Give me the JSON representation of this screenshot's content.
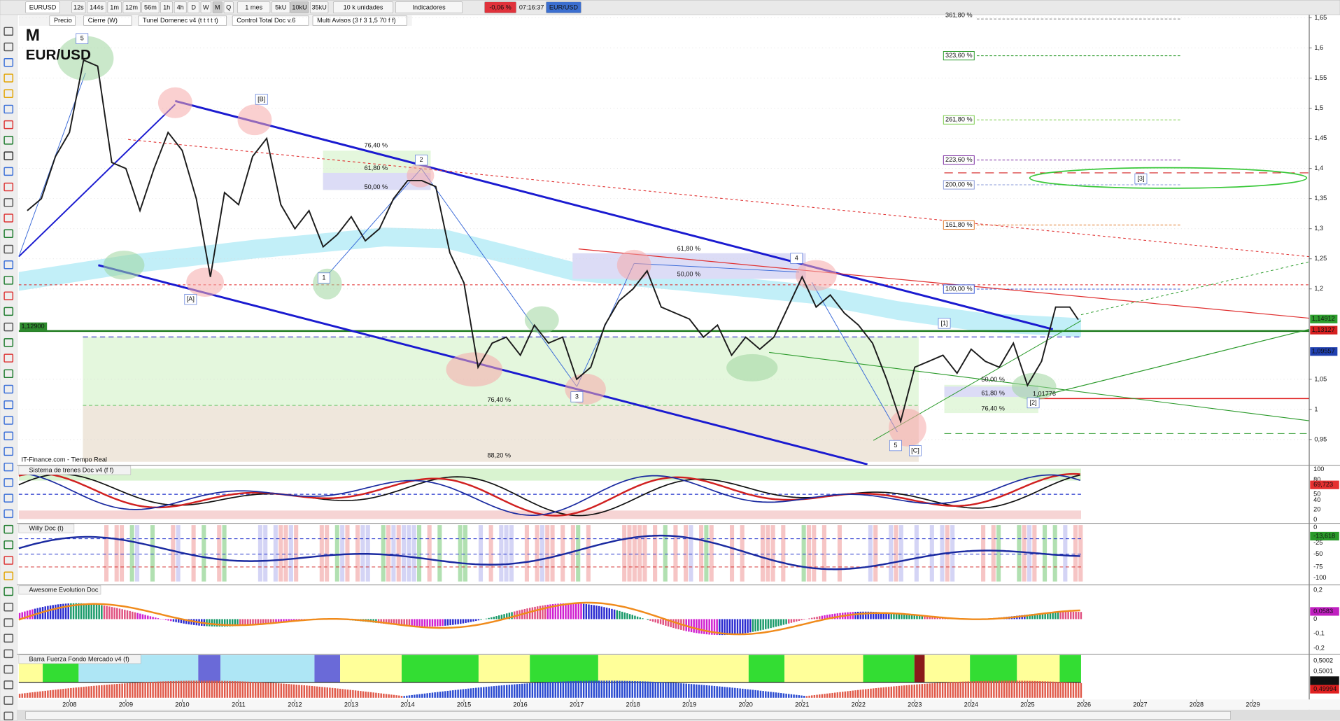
{
  "toolbar": {
    "symbol": "EURUSD",
    "intervals": [
      "12s",
      "144s",
      "1m",
      "12m",
      "56m",
      "1h",
      "4h",
      "D",
      "W",
      "M",
      "Q"
    ],
    "period": "1 mes",
    "units": [
      "5kU",
      "10kU",
      "35kU"
    ],
    "quantity": "10 k unidades",
    "indicators": "Indicadores",
    "change": "-0,06 %",
    "time": "07:16:37",
    "pair": "EUR/USD"
  },
  "indicator_bar": [
    "Precio",
    "Cierre (W)",
    "Tunel Domenec v4 (t t t t t)",
    "Control Total Doc v.6",
    "Multi Avisos (3 f 3 1,5 70 f f)"
  ],
  "chart_data": {
    "type": "line",
    "title": "M",
    "subtitle": "EUR/USD",
    "source": "IT-Finance.com - Tiempo Real",
    "x": [
      2007.25,
      2007.5,
      2007.75,
      2008,
      2008.25,
      2008.5,
      2008.75,
      2009,
      2009.25,
      2009.5,
      2009.75,
      2010,
      2010.25,
      2010.5,
      2010.75,
      2011,
      2011.25,
      2011.5,
      2011.75,
      2012,
      2012.25,
      2012.5,
      2012.75,
      2013,
      2013.25,
      2013.5,
      2013.75,
      2014,
      2014.25,
      2014.5,
      2014.75,
      2015,
      2015.25,
      2015.5,
      2015.75,
      2016,
      2016.25,
      2016.5,
      2016.75,
      2017,
      2017.25,
      2017.5,
      2017.75,
      2018,
      2018.25,
      2018.5,
      2018.75,
      2019,
      2019.25,
      2019.5,
      2019.75,
      2020,
      2020.25,
      2020.5,
      2020.75,
      2021,
      2021.25,
      2021.5,
      2021.75,
      2022,
      2022.25,
      2022.5,
      2022.75,
      2023,
      2023.25,
      2023.5,
      2023.75,
      2024,
      2024.25,
      2024.5,
      2024.75,
      2025,
      2025.25,
      2025.5,
      2025.75,
      2025.9
    ],
    "values": [
      1.33,
      1.35,
      1.42,
      1.46,
      1.58,
      1.57,
      1.41,
      1.4,
      1.33,
      1.4,
      1.46,
      1.43,
      1.35,
      1.22,
      1.36,
      1.34,
      1.42,
      1.45,
      1.34,
      1.3,
      1.33,
      1.27,
      1.29,
      1.32,
      1.28,
      1.3,
      1.35,
      1.38,
      1.38,
      1.37,
      1.26,
      1.21,
      1.07,
      1.11,
      1.12,
      1.09,
      1.14,
      1.11,
      1.12,
      1.05,
      1.07,
      1.14,
      1.18,
      1.2,
      1.23,
      1.17,
      1.16,
      1.15,
      1.12,
      1.14,
      1.09,
      1.12,
      1.1,
      1.12,
      1.17,
      1.22,
      1.17,
      1.19,
      1.16,
      1.14,
      1.11,
      1.05,
      0.98,
      1.07,
      1.08,
      1.09,
      1.06,
      1.1,
      1.08,
      1.07,
      1.11,
      1.04,
      1.08,
      1.17,
      1.17,
      1.149
    ],
    "color": "#1b1b1b",
    "xlim": [
      2007.1,
      2030.0
    ],
    "xticks": [
      2008,
      2009,
      2010,
      2011,
      2012,
      2013,
      2014,
      2015,
      2016,
      2017,
      2018,
      2019,
      2020,
      2021,
      2022,
      2023,
      2024,
      2025,
      2026,
      2027,
      2028,
      2029
    ],
    "ylim": [
      0.913,
      1.654
    ],
    "yticks": [
      {
        "value": 0.95,
        "label": "0,95"
      },
      1,
      {
        "value": 1.05,
        "label": "1,05"
      },
      {
        "value": 1.2,
        "label": "1,2"
      },
      {
        "value": 1.25,
        "label": "1,25"
      },
      {
        "value": 1.3,
        "label": "1,3"
      },
      {
        "value": 1.35,
        "label": "1,35"
      },
      {
        "value": 1.4,
        "label": "1,4"
      },
      {
        "value": 1.45,
        "label": "1,45"
      },
      {
        "value": 1.5,
        "label": "1,5"
      },
      {
        "value": 1.55,
        "label": "1,55"
      },
      {
        "value": 1.6,
        "label": "1,6"
      },
      {
        "value": 1.65,
        "label": "1,65"
      }
    ],
    "grid": true,
    "price_labels": [
      {
        "text": "1,14912",
        "color": "#2e9e2e"
      },
      {
        "text": "1,13127",
        "color": "#d62020"
      },
      {
        "text": "1,09557",
        "color": "#1f3fb0"
      },
      {
        "text": "1,12900",
        "color": "#2e8b2e"
      }
    ],
    "fib_labels": [
      "361,80 %",
      "323,60 %",
      "261,80 %",
      "223,60 %",
      "200,00 %",
      "161,80 %",
      "100,00 %",
      "76,40 %",
      "61,80 %",
      "50,00 %",
      "61,80 %",
      "50,00 %",
      "76,40 %",
      "88,20 %",
      "50,00 %",
      "61,80 %",
      "76,40 %",
      "1,01776"
    ],
    "wave_labels": [
      "5",
      "[B]",
      "2",
      "[A]",
      "1",
      "4",
      "3",
      "[1]",
      "[3]",
      "[2]",
      "5",
      "[C]"
    ]
  },
  "panels": [
    {
      "title": "Sistema de trenes Doc v4 (f f)",
      "axis_labels": [
        "100",
        "80",
        "69,723",
        "50",
        "40",
        "20",
        "0"
      ]
    },
    {
      "title": "Willy Doc (t)",
      "axis_labels": [
        "0",
        "-13,618",
        "-25",
        "-50",
        "-75",
        "-100"
      ]
    },
    {
      "title": "Awesome Evolution Doc",
      "axis_labels": [
        "0,2",
        "0,0583",
        "0",
        "-0,1",
        "-0,2"
      ]
    },
    {
      "title": "Barra Fuerza Fondo Mercado v4 (f)",
      "axis_labels": [
        "0,5002",
        "0,5001",
        "0,50000",
        "0,49994"
      ]
    }
  ]
}
